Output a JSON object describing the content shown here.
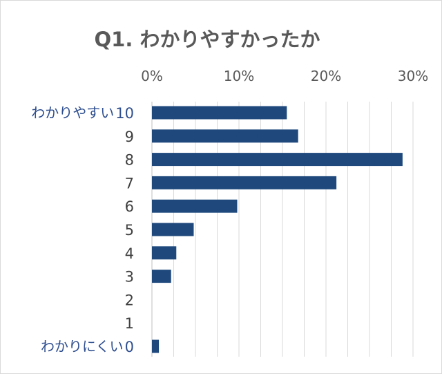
{
  "chart_data": {
    "type": "bar",
    "orientation": "horizontal",
    "title": "Q1. わかりやすかったか",
    "categories": [
      "10",
      "9",
      "8",
      "7",
      "6",
      "5",
      "4",
      "3",
      "2",
      "1",
      "0"
    ],
    "category_annotations": {
      "10": "わかりやすい",
      "0": "わかりにくい"
    },
    "values": [
      15.5,
      16.8,
      28.8,
      21.2,
      9.8,
      4.8,
      2.8,
      2.2,
      0,
      0,
      0.8
    ],
    "value_unit": "%",
    "xlim": [
      0,
      30
    ],
    "x_ticks": [
      "0%",
      "10%",
      "20%",
      "30%"
    ],
    "x_axis_position": "top",
    "grid": true,
    "bar_color": "#1f497d",
    "grid_color": "#d9d9d9",
    "legend": false
  }
}
